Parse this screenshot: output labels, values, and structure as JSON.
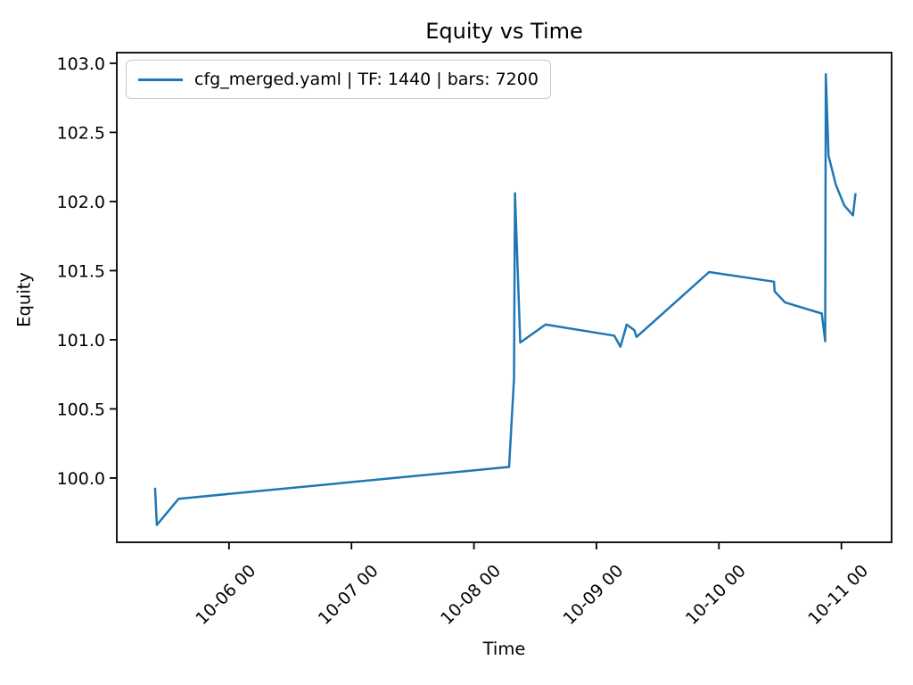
{
  "chart_data": {
    "type": "line",
    "title": "Equity vs Time",
    "xlabel": "Time",
    "ylabel": "Equity",
    "grid": false,
    "background_color": "#ffffff",
    "axis_color": "#000000",
    "legend": {
      "position": "upper-left",
      "border_color": "#c9c9c9"
    },
    "x_axis": {
      "unit": "days since 10-05 00:00",
      "min": 0.084,
      "max": 6.41,
      "tick_rotation_deg": 45,
      "ticks": [
        {
          "v": 1,
          "label": "10-06 00"
        },
        {
          "v": 2,
          "label": "10-07 00"
        },
        {
          "v": 3,
          "label": "10-08 00"
        },
        {
          "v": 4,
          "label": "10-09 00"
        },
        {
          "v": 5,
          "label": "10-10 00"
        },
        {
          "v": 6,
          "label": "10-11 00"
        }
      ]
    },
    "y_axis": {
      "min": 99.535,
      "max": 103.077,
      "ticks": [
        {
          "v": 100.0,
          "label": "100.0"
        },
        {
          "v": 100.5,
          "label": "100.5"
        },
        {
          "v": 101.0,
          "label": "101.0"
        },
        {
          "v": 101.5,
          "label": "101.5"
        },
        {
          "v": 102.0,
          "label": "102.0"
        },
        {
          "v": 102.5,
          "label": "102.5"
        },
        {
          "v": 103.0,
          "label": "103.0"
        }
      ]
    },
    "series": [
      {
        "name": "cfg_merged.yaml | TF: 1440 | bars: 7200",
        "color": "#1f77b4",
        "line_width": 2.5,
        "points": [
          [
            0.396,
            99.93
          ],
          [
            0.411,
            99.66
          ],
          [
            0.589,
            99.85
          ],
          [
            3.287,
            100.08
          ],
          [
            3.327,
            100.72
          ],
          [
            3.335,
            102.06
          ],
          [
            3.378,
            100.98
          ],
          [
            3.585,
            101.11
          ],
          [
            4.145,
            101.03
          ],
          [
            4.196,
            100.95
          ],
          [
            4.247,
            101.11
          ],
          [
            4.309,
            101.07
          ],
          [
            4.327,
            101.02
          ],
          [
            4.92,
            101.49
          ],
          [
            5.45,
            101.42
          ],
          [
            5.455,
            101.35
          ],
          [
            5.54,
            101.27
          ],
          [
            5.84,
            101.19
          ],
          [
            5.868,
            100.99
          ],
          [
            5.873,
            102.92
          ],
          [
            5.895,
            102.33
          ],
          [
            5.955,
            102.12
          ],
          [
            6.025,
            101.97
          ],
          [
            6.095,
            101.9
          ],
          [
            6.115,
            102.06
          ]
        ]
      }
    ]
  }
}
